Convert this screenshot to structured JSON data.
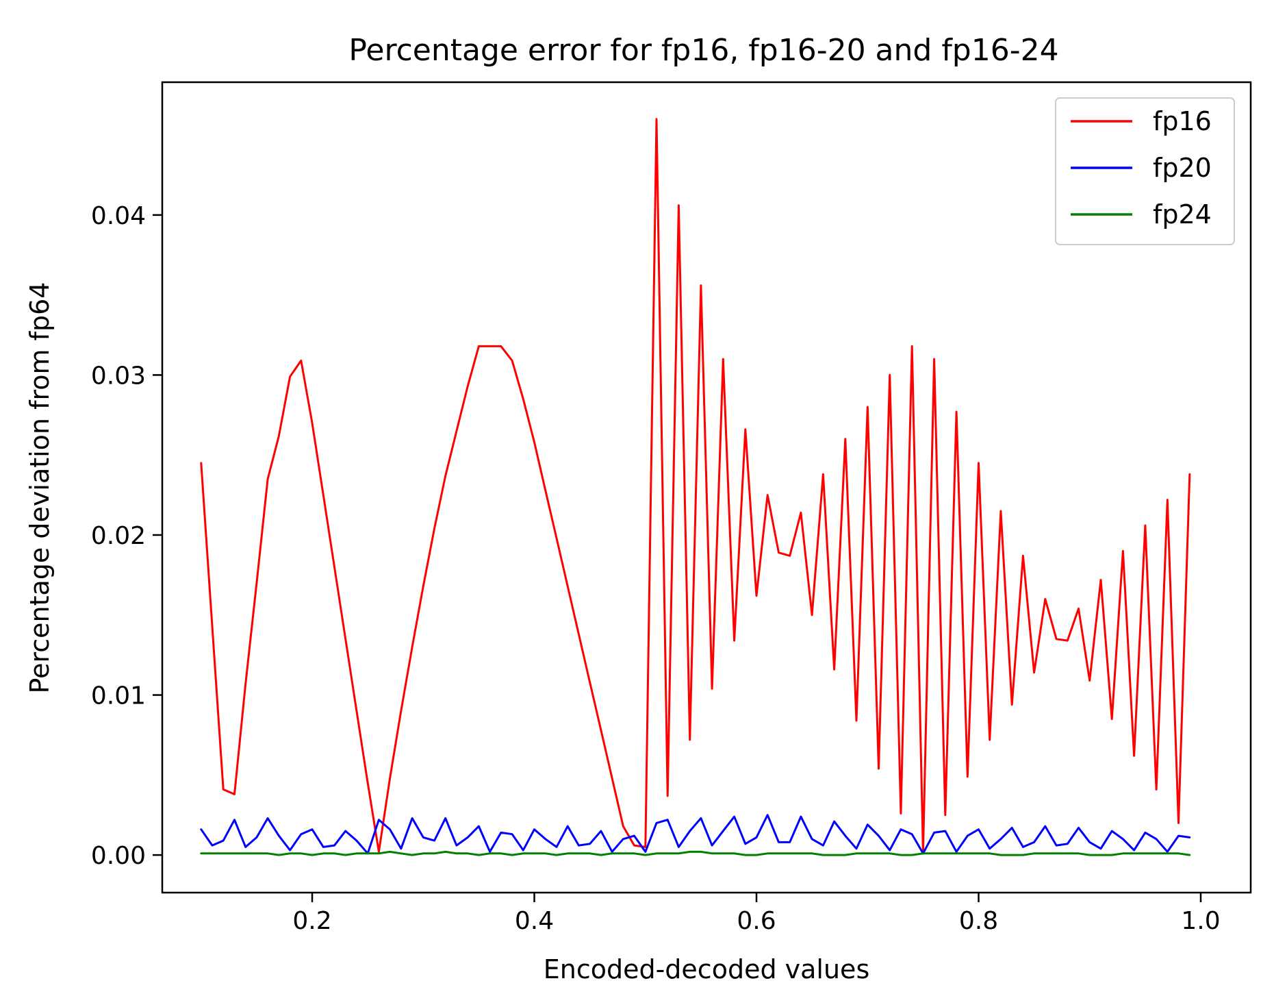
{
  "chart_data": {
    "type": "line",
    "title": "Percentage error for fp16, fp16-20 and fp16-24",
    "xlabel": "Encoded-decoded values",
    "ylabel": "Percentage deviation from fp64",
    "xlim": [
      0.065,
      1.045
    ],
    "ylim": [
      -0.00235,
      0.0483
    ],
    "xticks": [
      0.2,
      0.4,
      0.6,
      0.8,
      1.0
    ],
    "xtick_labels": [
      "0.2",
      "0.4",
      "0.6",
      "0.8",
      "1.0"
    ],
    "yticks": [
      0.0,
      0.01,
      0.02,
      0.03,
      0.04
    ],
    "ytick_labels": [
      "0.00",
      "0.01",
      "0.02",
      "0.03",
      "0.04"
    ],
    "grid": false,
    "legend_position": "top-right",
    "x": [
      0.1,
      0.11,
      0.12,
      0.13,
      0.14,
      0.15,
      0.16,
      0.17,
      0.18,
      0.19,
      0.2,
      0.21,
      0.22,
      0.23,
      0.24,
      0.25,
      0.26,
      0.27,
      0.28,
      0.29,
      0.3,
      0.31,
      0.32,
      0.33,
      0.34,
      0.35,
      0.36,
      0.37,
      0.38,
      0.39,
      0.4,
      0.41,
      0.42,
      0.43,
      0.44,
      0.45,
      0.46,
      0.47,
      0.48,
      0.49,
      0.5,
      0.51,
      0.52,
      0.53,
      0.54,
      0.55,
      0.56,
      0.57,
      0.58,
      0.59,
      0.6,
      0.61,
      0.62,
      0.63,
      0.64,
      0.65,
      0.66,
      0.67,
      0.68,
      0.69,
      0.7,
      0.71,
      0.72,
      0.73,
      0.74,
      0.75,
      0.76,
      0.77,
      0.78,
      0.79,
      0.8,
      0.81,
      0.82,
      0.83,
      0.84,
      0.85,
      0.86,
      0.87,
      0.88,
      0.89,
      0.9,
      0.91,
      0.92,
      0.93,
      0.94,
      0.95,
      0.96,
      0.97,
      0.98,
      0.99
    ],
    "series": [
      {
        "name": "fp16",
        "color": "#ff0000",
        "values": [
          0.0245,
          0.0143,
          0.0041,
          0.0038,
          0.0107,
          0.017,
          0.0235,
          0.0262,
          0.0299,
          0.0309,
          0.027,
          0.0225,
          0.018,
          0.0135,
          0.009,
          0.0045,
          0.0002,
          0.0048,
          0.009,
          0.013,
          0.0168,
          0.0204,
          0.0237,
          0.0265,
          0.0293,
          0.0318,
          0.0318,
          0.0318,
          0.0309,
          0.0285,
          0.0258,
          0.0228,
          0.0198,
          0.0168,
          0.0138,
          0.0108,
          0.0078,
          0.0048,
          0.0018,
          0.0006,
          0.0005,
          0.046,
          0.0037,
          0.0406,
          0.0072,
          0.0356,
          0.0104,
          0.031,
          0.0134,
          0.0266,
          0.0162,
          0.0225,
          0.0189,
          0.0187,
          0.0214,
          0.015,
          0.0238,
          0.0116,
          0.026,
          0.0084,
          0.028,
          0.0054,
          0.03,
          0.0026,
          0.0318,
          0.0002,
          0.031,
          0.0025,
          0.0277,
          0.0049,
          0.0245,
          0.0072,
          0.0215,
          0.0094,
          0.0187,
          0.0114,
          0.016,
          0.0135,
          0.0134,
          0.0154,
          0.0109,
          0.0172,
          0.0085,
          0.019,
          0.0062,
          0.0206,
          0.0041,
          0.0222,
          0.002,
          0.0238
        ]
      },
      {
        "name": "fp20",
        "color": "#0000ff",
        "values": [
          0.0016,
          0.0006,
          0.0009,
          0.0022,
          0.0005,
          0.0011,
          0.0023,
          0.0012,
          0.0003,
          0.0013,
          0.0016,
          0.0005,
          0.0006,
          0.0015,
          0.0009,
          0.0001,
          0.0022,
          0.0016,
          0.0004,
          0.0023,
          0.0011,
          0.0009,
          0.0023,
          0.0006,
          0.0011,
          0.0018,
          0.0002,
          0.0014,
          0.0013,
          0.0003,
          0.0016,
          0.001,
          0.0005,
          0.0018,
          0.0006,
          0.0007,
          0.0015,
          0.0002,
          0.001,
          0.0012,
          0.0002,
          0.002,
          0.0022,
          0.0005,
          0.0015,
          0.0023,
          0.0006,
          0.0015,
          0.0024,
          0.0007,
          0.0011,
          0.0025,
          0.0008,
          0.0008,
          0.0024,
          0.001,
          0.0006,
          0.0021,
          0.0012,
          0.0004,
          0.0019,
          0.0012,
          0.0003,
          0.0016,
          0.0013,
          0.0001,
          0.0014,
          0.0015,
          0.0002,
          0.0012,
          0.0016,
          0.0004,
          0.001,
          0.0017,
          0.0005,
          0.0008,
          0.0018,
          0.0006,
          0.0007,
          0.0017,
          0.0008,
          0.0004,
          0.0015,
          0.001,
          0.0003,
          0.0014,
          0.001,
          0.0002,
          0.0012,
          0.0011
        ]
      },
      {
        "name": "fp24",
        "color": "#008000",
        "values": [
          0.0001,
          0.0001,
          0.0001,
          0.0001,
          0.0001,
          0.0001,
          0.0001,
          0.0,
          0.0001,
          0.0001,
          0.0,
          0.0001,
          0.0001,
          0.0,
          0.0001,
          0.0001,
          0.0001,
          0.0002,
          0.0001,
          0.0,
          0.0001,
          0.0001,
          0.0002,
          0.0001,
          0.0001,
          0.0,
          0.0001,
          0.0001,
          0.0,
          0.0001,
          0.0001,
          0.0001,
          0.0,
          0.0001,
          0.0001,
          0.0001,
          0.0,
          0.0001,
          0.0001,
          0.0001,
          0.0,
          0.0001,
          0.0001,
          0.0001,
          0.0002,
          0.0002,
          0.0001,
          0.0001,
          0.0001,
          0.0,
          0.0,
          0.0001,
          0.0001,
          0.0001,
          0.0001,
          0.0001,
          0.0,
          0.0,
          0.0,
          0.0001,
          0.0001,
          0.0001,
          0.0001,
          0.0,
          0.0,
          0.0001,
          0.0001,
          0.0001,
          0.0001,
          0.0001,
          0.0001,
          0.0001,
          0.0,
          0.0,
          0.0,
          0.0001,
          0.0001,
          0.0001,
          0.0001,
          0.0001,
          0.0,
          0.0,
          0.0,
          0.0001,
          0.0001,
          0.0001,
          0.0001,
          0.0001,
          0.0001,
          0.0
        ]
      }
    ]
  }
}
